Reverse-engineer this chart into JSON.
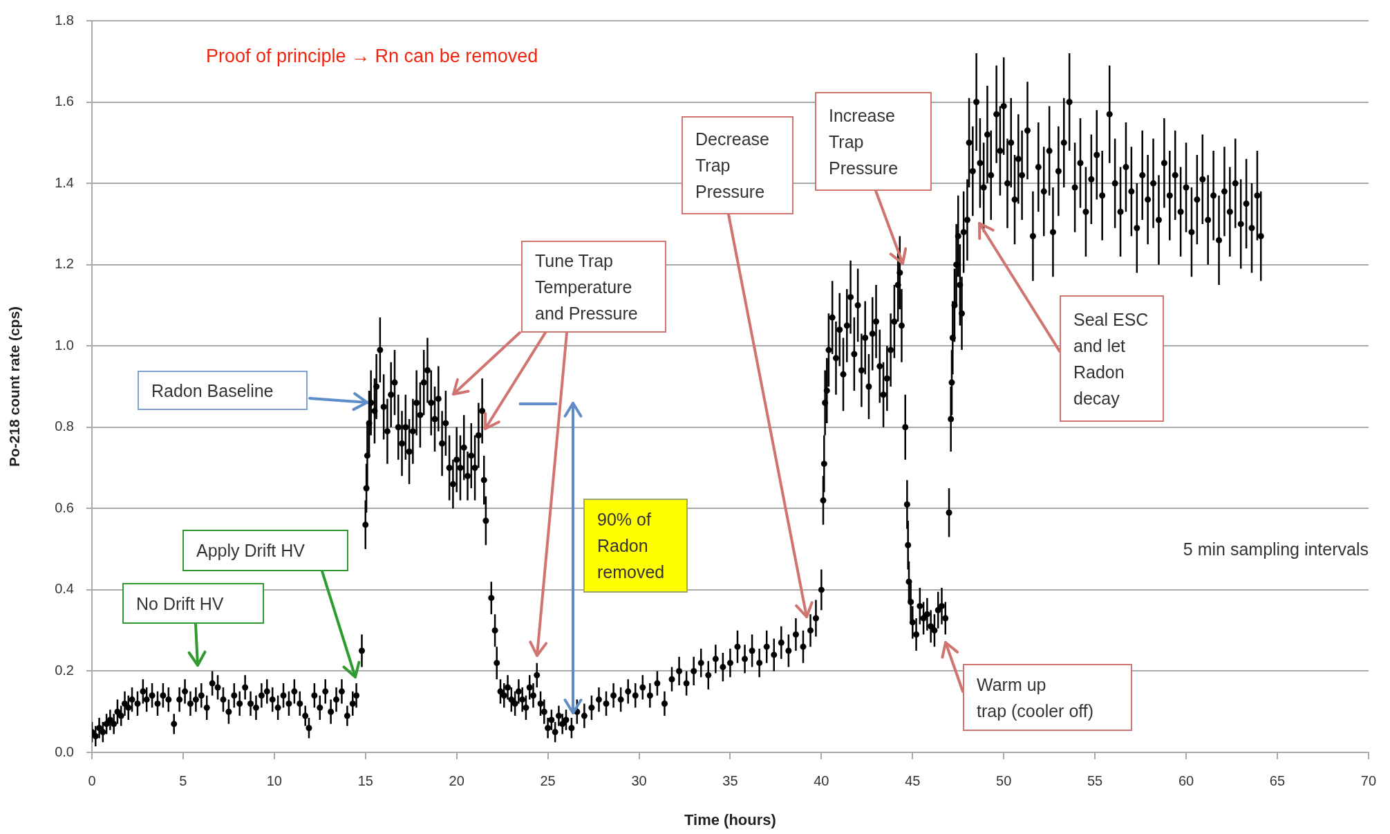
{
  "chart_data": {
    "type": "scatter",
    "title": "Proof of principle → Rn can be removed",
    "xlabel": "Time (hours)",
    "ylabel": "Po-218 count rate (cps)",
    "annotations": [
      "Radon Baseline",
      "No Drift HV",
      "Apply Drift HV",
      "Tune Trap\nTemperature\nand Pressure",
      "90% of\nRadon\nremoved",
      "Decrease\nTrap\nPressure",
      "Increase\nTrap\nPressure",
      "Seal ESC\nand let\nRadon\ndecay",
      "Warm up\ntrap (cooler off)",
      "5 min sampling intervals"
    ],
    "x": [
      0,
      0.2,
      0.4,
      0.6,
      0.8,
      1,
      1.2,
      1.4,
      1.6,
      1.8,
      2,
      2.2,
      2.5,
      2.8,
      3,
      3.3,
      3.6,
      3.9,
      4.2,
      4.5,
      4.8,
      5.1,
      5.4,
      5.7,
      6,
      6.3,
      6.6,
      6.9,
      7.2,
      7.5,
      7.8,
      8.1,
      8.4,
      8.7,
      9,
      9.3,
      9.6,
      9.9,
      10.2,
      10.5,
      10.8,
      11.1,
      11.4,
      11.7,
      11.9,
      12.2,
      12.5,
      12.8,
      13.1,
      13.4,
      13.7,
      14,
      14.3,
      14.5,
      14.8,
      15,
      15.05,
      15.1,
      15.2,
      15.3,
      15.5,
      15.6,
      15.8,
      16,
      16.2,
      16.4,
      16.6,
      16.8,
      17,
      17.2,
      17.4,
      17.6,
      17.8,
      18,
      18.2,
      18.4,
      18.6,
      18.8,
      19,
      19.2,
      19.4,
      19.6,
      19.8,
      20,
      20.2,
      20.4,
      20.6,
      20.8,
      21,
      21.2,
      21.4,
      21.5,
      21.6,
      21.9,
      22.1,
      22.2,
      22.4,
      22.6,
      22.8,
      23,
      23.2,
      23.4,
      23.6,
      23.8,
      24,
      24.2,
      24.4,
      24.6,
      24.8,
      25,
      25.2,
      25.4,
      25.6,
      25.8,
      26,
      26.3,
      26.6,
      27,
      27.4,
      27.8,
      28.2,
      28.6,
      29,
      29.4,
      29.8,
      30.2,
      30.6,
      31,
      31.4,
      31.8,
      32.2,
      32.6,
      33,
      33.4,
      33.8,
      34.2,
      34.6,
      35,
      35.4,
      35.8,
      36.2,
      36.6,
      37,
      37.4,
      37.8,
      38.2,
      38.6,
      39,
      39.4,
      39.7,
      40,
      40.1,
      40.15,
      40.2,
      40.3,
      40.4,
      40.6,
      40.8,
      41,
      41.2,
      41.4,
      41.6,
      41.8,
      42,
      42.2,
      42.4,
      42.6,
      42.8,
      43,
      43.2,
      43.4,
      43.6,
      43.8,
      44,
      44.2,
      44.3,
      44.4,
      44.6,
      44.7,
      44.75,
      44.8,
      44.9,
      45,
      45.2,
      45.4,
      45.6,
      45.8,
      46,
      46.2,
      46.4,
      46.6,
      46.8,
      47,
      47.1,
      47.15,
      47.2,
      47.3,
      47.4,
      47.5,
      47.6,
      47.7,
      47.8,
      48,
      48.1,
      48.3,
      48.5,
      48.7,
      48.9,
      49.1,
      49.3,
      49.6,
      49.8,
      50,
      50.2,
      50.4,
      50.6,
      50.8,
      51,
      51.3,
      51.6,
      51.9,
      52.2,
      52.5,
      52.7,
      53,
      53.3,
      53.6,
      53.9,
      54.2,
      54.5,
      54.8,
      55.1,
      55.4,
      55.8,
      56.1,
      56.4,
      56.7,
      57,
      57.3,
      57.6,
      57.9,
      58.2,
      58.5,
      58.8,
      59.1,
      59.4,
      59.7,
      60,
      60.3,
      60.6,
      60.9,
      61.2,
      61.5,
      61.8,
      62.1,
      62.4,
      62.7,
      63,
      63.3,
      63.6,
      63.9,
      64.1
    ],
    "values": [
      0.05,
      0.04,
      0.06,
      0.05,
      0.07,
      0.08,
      0.07,
      0.1,
      0.09,
      0.12,
      0.11,
      0.13,
      0.12,
      0.15,
      0.13,
      0.14,
      0.12,
      0.14,
      0.13,
      0.07,
      0.13,
      0.15,
      0.12,
      0.13,
      0.14,
      0.11,
      0.17,
      0.16,
      0.13,
      0.1,
      0.14,
      0.12,
      0.16,
      0.12,
      0.11,
      0.14,
      0.15,
      0.13,
      0.11,
      0.14,
      0.12,
      0.15,
      0.12,
      0.09,
      0.06,
      0.14,
      0.11,
      0.15,
      0.1,
      0.13,
      0.15,
      0.09,
      0.12,
      0.14,
      0.25,
      0.56,
      0.65,
      0.73,
      0.81,
      0.86,
      0.84,
      0.9,
      0.99,
      0.85,
      0.79,
      0.88,
      0.91,
      0.8,
      0.76,
      0.8,
      0.74,
      0.79,
      0.86,
      0.83,
      0.91,
      0.94,
      0.86,
      0.82,
      0.87,
      0.76,
      0.81,
      0.7,
      0.66,
      0.72,
      0.7,
      0.75,
      0.68,
      0.73,
      0.7,
      0.78,
      0.84,
      0.67,
      0.57,
      0.38,
      0.3,
      0.22,
      0.15,
      0.14,
      0.16,
      0.13,
      0.12,
      0.15,
      0.13,
      0.11,
      0.16,
      0.14,
      0.19,
      0.12,
      0.1,
      0.06,
      0.08,
      0.05,
      0.09,
      0.07,
      0.08,
      0.06,
      0.1,
      0.09,
      0.11,
      0.13,
      0.12,
      0.14,
      0.13,
      0.15,
      0.14,
      0.16,
      0.14,
      0.17,
      0.12,
      0.18,
      0.2,
      0.17,
      0.2,
      0.22,
      0.19,
      0.23,
      0.21,
      0.22,
      0.26,
      0.23,
      0.25,
      0.22,
      0.26,
      0.24,
      0.27,
      0.25,
      0.29,
      0.26,
      0.3,
      0.33,
      0.4,
      0.62,
      0.71,
      0.86,
      0.89,
      0.99,
      1.07,
      0.97,
      1.04,
      0.93,
      1.05,
      1.12,
      0.98,
      1.1,
      0.94,
      1.02,
      0.9,
      1.03,
      1.06,
      0.95,
      0.88,
      0.92,
      0.99,
      1.06,
      1.15,
      1.18,
      1.05,
      0.8,
      0.61,
      0.51,
      0.42,
      0.37,
      0.32,
      0.29,
      0.36,
      0.33,
      0.34,
      0.31,
      0.3,
      0.35,
      0.36,
      0.33,
      0.59,
      0.82,
      0.91,
      1.02,
      1.1,
      1.2,
      1.27,
      1.15,
      1.08,
      1.28,
      1.31,
      1.5,
      1.43,
      1.6,
      1.45,
      1.39,
      1.52,
      1.42,
      1.57,
      1.48,
      1.59,
      1.4,
      1.5,
      1.36,
      1.46,
      1.42,
      1.53,
      1.27,
      1.44,
      1.38,
      1.48,
      1.28,
      1.43,
      1.5,
      1.6,
      1.39,
      1.45,
      1.33,
      1.41,
      1.47,
      1.37,
      1.57,
      1.4,
      1.33,
      1.44,
      1.38,
      1.29,
      1.42,
      1.36,
      1.4,
      1.31,
      1.45,
      1.37,
      1.42,
      1.33,
      1.39,
      1.28,
      1.36,
      1.41,
      1.31,
      1.37,
      1.26,
      1.38,
      1.33,
      1.4,
      1.3,
      1.35,
      1.29,
      1.37,
      1.27
    ],
    "errors": [
      0.025,
      0.025,
      0.025,
      0.025,
      0.025,
      0.025,
      0.025,
      0.03,
      0.025,
      0.03,
      0.03,
      0.03,
      0.03,
      0.03,
      0.03,
      0.03,
      0.03,
      0.03,
      0.03,
      0.025,
      0.03,
      0.03,
      0.03,
      0.03,
      0.03,
      0.03,
      0.03,
      0.03,
      0.03,
      0.03,
      0.03,
      0.03,
      0.03,
      0.03,
      0.03,
      0.03,
      0.03,
      0.03,
      0.03,
      0.03,
      0.03,
      0.03,
      0.03,
      0.025,
      0.025,
      0.03,
      0.03,
      0.03,
      0.03,
      0.03,
      0.03,
      0.025,
      0.03,
      0.03,
      0.04,
      0.06,
      0.06,
      0.08,
      0.08,
      0.08,
      0.08,
      0.08,
      0.08,
      0.08,
      0.08,
      0.08,
      0.08,
      0.08,
      0.08,
      0.08,
      0.08,
      0.08,
      0.08,
      0.08,
      0.08,
      0.08,
      0.08,
      0.08,
      0.08,
      0.08,
      0.08,
      0.08,
      0.06,
      0.08,
      0.08,
      0.08,
      0.06,
      0.08,
      0.08,
      0.08,
      0.08,
      0.06,
      0.06,
      0.04,
      0.04,
      0.04,
      0.03,
      0.03,
      0.03,
      0.03,
      0.03,
      0.03,
      0.03,
      0.03,
      0.03,
      0.03,
      0.03,
      0.03,
      0.03,
      0.025,
      0.025,
      0.025,
      0.025,
      0.025,
      0.025,
      0.025,
      0.03,
      0.03,
      0.03,
      0.03,
      0.03,
      0.03,
      0.03,
      0.03,
      0.03,
      0.03,
      0.03,
      0.03,
      0.03,
      0.03,
      0.035,
      0.03,
      0.035,
      0.035,
      0.035,
      0.035,
      0.035,
      0.035,
      0.04,
      0.035,
      0.04,
      0.035,
      0.04,
      0.04,
      0.04,
      0.04,
      0.04,
      0.04,
      0.04,
      0.045,
      0.05,
      0.06,
      0.07,
      0.08,
      0.08,
      0.09,
      0.09,
      0.09,
      0.09,
      0.09,
      0.09,
      0.09,
      0.09,
      0.09,
      0.09,
      0.09,
      0.08,
      0.09,
      0.09,
      0.09,
      0.08,
      0.08,
      0.09,
      0.09,
      0.09,
      0.09,
      0.09,
      0.08,
      0.06,
      0.06,
      0.05,
      0.045,
      0.04,
      0.04,
      0.045,
      0.04,
      0.04,
      0.04,
      0.04,
      0.045,
      0.045,
      0.04,
      0.06,
      0.08,
      0.08,
      0.09,
      0.09,
      0.1,
      0.1,
      0.1,
      0.09,
      0.1,
      0.1,
      0.11,
      0.11,
      0.12,
      0.11,
      0.11,
      0.12,
      0.11,
      0.12,
      0.11,
      0.12,
      0.11,
      0.11,
      0.11,
      0.11,
      0.11,
      0.12,
      0.11,
      0.11,
      0.11,
      0.11,
      0.11,
      0.11,
      0.11,
      0.12,
      0.11,
      0.11,
      0.11,
      0.11,
      0.11,
      0.11,
      0.12,
      0.11,
      0.11,
      0.11,
      0.11,
      0.11,
      0.11,
      0.11,
      0.11,
      0.11,
      0.11,
      0.11,
      0.11,
      0.11,
      0.11,
      0.11,
      0.11,
      0.11,
      0.11,
      0.11,
      0.11,
      0.11,
      0.11,
      0.11,
      0.11,
      0.11,
      0.11,
      0.11,
      0.11
    ],
    "color": "#000000",
    "marker": "circle",
    "xlim": [
      0,
      70
    ],
    "xticks": [
      0,
      5,
      10,
      15,
      20,
      25,
      30,
      35,
      40,
      45,
      50,
      55,
      60,
      65,
      70
    ],
    "ylim": [
      0,
      1.8
    ],
    "yticks": [
      {
        "value": 0,
        "label": "0.0"
      },
      0.2,
      0.4,
      0.6,
      0.8,
      {
        "value": 1,
        "label": "1.0"
      },
      1.2,
      1.4,
      1.6,
      1.8
    ],
    "grid": "y"
  }
}
